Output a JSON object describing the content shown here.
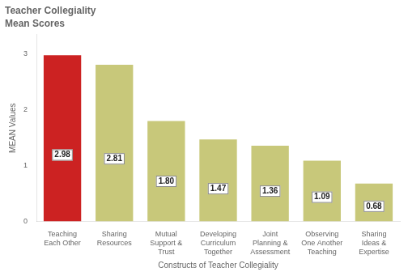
{
  "chart_data": {
    "type": "bar",
    "title": "Teacher Collegiality",
    "subtitle": "Mean Scores",
    "categories": [
      "Teaching\nEach Other",
      "Sharing\nResources",
      "Mutual\nSupport &\nTrust",
      "Developing\nCurriculum\nTogether",
      "Joint\nPlanning &\nAssessment",
      "Observing\nOne Another\nTeaching",
      "Sharing\nIdeas &\nExpertise"
    ],
    "values": [
      2.98,
      2.81,
      1.8,
      1.47,
      1.36,
      1.09,
      0.68
    ],
    "value_labels": [
      "2.98",
      "2.81",
      "1.80",
      "1.47",
      "1.36",
      "1.09",
      "0.68"
    ],
    "colors": [
      "#cc2222",
      "#c8c87a",
      "#c8c87a",
      "#c8c87a",
      "#c8c87a",
      "#c8c87a",
      "#c8c87a"
    ],
    "ylabel": "MEAN Values",
    "xlabel": "Constructs of Teacher Collegiality",
    "ylim": [
      0,
      3.35
    ],
    "yticks": [
      0,
      1,
      2,
      3
    ],
    "data_labels": true,
    "grid": false
  }
}
